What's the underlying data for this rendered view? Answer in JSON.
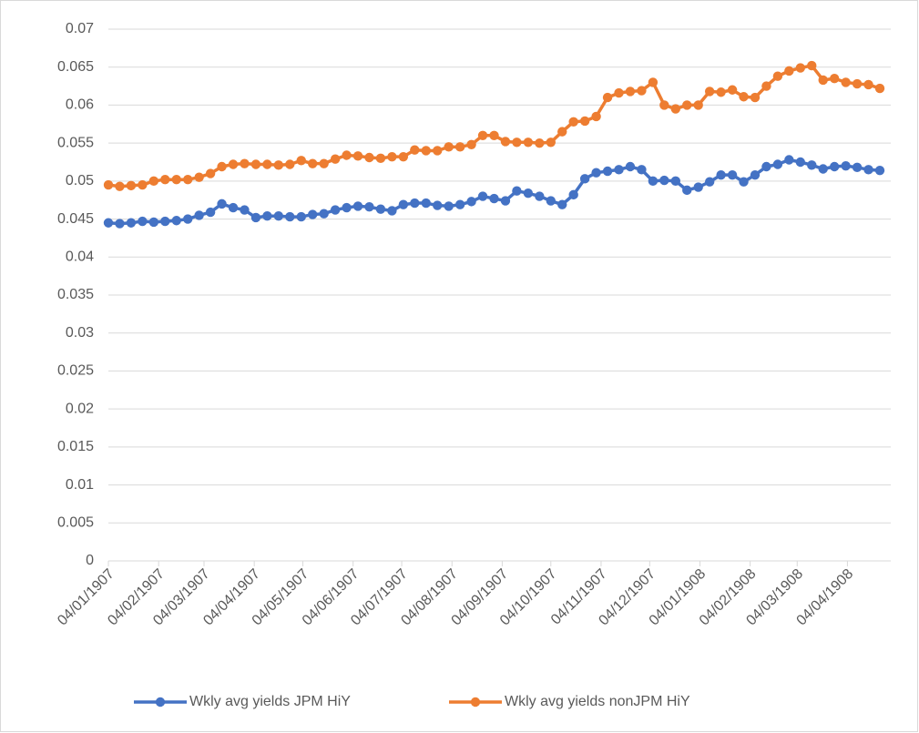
{
  "chart_data": {
    "type": "line",
    "x": [
      "1907-01-04",
      "1907-01-11",
      "1907-01-18",
      "1907-01-25",
      "1907-02-01",
      "1907-02-08",
      "1907-02-15",
      "1907-02-22",
      "1907-03-01",
      "1907-03-08",
      "1907-03-15",
      "1907-03-22",
      "1907-03-29",
      "1907-04-05",
      "1907-04-12",
      "1907-04-19",
      "1907-04-26",
      "1907-05-03",
      "1907-05-10",
      "1907-05-17",
      "1907-05-24",
      "1907-05-31",
      "1907-06-07",
      "1907-06-14",
      "1907-06-21",
      "1907-06-28",
      "1907-07-05",
      "1907-07-12",
      "1907-07-19",
      "1907-07-26",
      "1907-08-02",
      "1907-08-09",
      "1907-08-16",
      "1907-08-23",
      "1907-08-30",
      "1907-09-06",
      "1907-09-13",
      "1907-09-20",
      "1907-09-27",
      "1907-10-04",
      "1907-10-11",
      "1907-10-18",
      "1907-10-25",
      "1907-11-01",
      "1907-11-08",
      "1907-11-15",
      "1907-11-22",
      "1907-11-29",
      "1907-12-06",
      "1907-12-13",
      "1907-12-20",
      "1907-12-27",
      "1908-01-03",
      "1908-01-10",
      "1908-01-17",
      "1908-01-24",
      "1908-01-31",
      "1908-02-07",
      "1908-02-14",
      "1908-02-21",
      "1908-02-28",
      "1908-03-06",
      "1908-03-13",
      "1908-03-20",
      "1908-03-27",
      "1908-04-03",
      "1908-04-10",
      "1908-04-17",
      "1908-04-24"
    ],
    "series": [
      {
        "name": "Wkly avg yields JPM HiY",
        "color": "#4472c4",
        "values": [
          0.0445,
          0.0444,
          0.0445,
          0.0447,
          0.0446,
          0.0447,
          0.0448,
          0.045,
          0.0455,
          0.0459,
          0.047,
          0.0465,
          0.0462,
          0.0452,
          0.0454,
          0.0454,
          0.0453,
          0.0453,
          0.0456,
          0.0457,
          0.0462,
          0.0465,
          0.0467,
          0.0466,
          0.0463,
          0.0461,
          0.0469,
          0.0471,
          0.0471,
          0.0468,
          0.0467,
          0.0469,
          0.0473,
          0.048,
          0.0477,
          0.0474,
          0.0487,
          0.0484,
          0.048,
          0.0474,
          0.0469,
          0.0482,
          0.0503,
          0.0511,
          0.0513,
          0.0515,
          0.0519,
          0.0515,
          0.05,
          0.0501,
          0.05,
          0.0488,
          0.0492,
          0.0499,
          0.0508,
          0.0508,
          0.0499,
          0.0508,
          0.0519,
          0.0522,
          0.0528,
          0.0525,
          0.0521,
          0.0516,
          0.0519,
          0.052,
          0.0518,
          0.0515,
          0.0514
        ]
      },
      {
        "name": "Wkly avg yields nonJPM HiY",
        "color": "#ed7d31",
        "values": [
          0.0495,
          0.0493,
          0.0494,
          0.0495,
          0.05,
          0.0502,
          0.0502,
          0.0502,
          0.0505,
          0.051,
          0.0519,
          0.0522,
          0.0523,
          0.0522,
          0.0522,
          0.0521,
          0.0522,
          0.0527,
          0.0523,
          0.0523,
          0.0529,
          0.0534,
          0.0533,
          0.0531,
          0.053,
          0.0532,
          0.0532,
          0.0541,
          0.054,
          0.054,
          0.0545,
          0.0545,
          0.0548,
          0.056,
          0.056,
          0.0552,
          0.0551,
          0.0551,
          0.055,
          0.0551,
          0.0565,
          0.0578,
          0.0579,
          0.0585,
          0.061,
          0.0616,
          0.0618,
          0.0619,
          0.063,
          0.06,
          0.0595,
          0.06,
          0.06,
          0.0618,
          0.0617,
          0.062,
          0.0611,
          0.061,
          0.0625,
          0.0638,
          0.0645,
          0.0649,
          0.0652,
          0.0633,
          0.0635,
          0.063,
          0.0628,
          0.0627,
          0.0622
        ]
      }
    ],
    "xlim": [
      "1907-01-04",
      "1908-04-24"
    ],
    "xticks": [
      {
        "value": "1907-01-04",
        "label": "04/01/1907"
      },
      {
        "value": "1907-02-04",
        "label": "04/02/1907"
      },
      {
        "value": "1907-03-04",
        "label": "04/03/1907"
      },
      {
        "value": "1907-04-04",
        "label": "04/04/1907"
      },
      {
        "value": "1907-05-04",
        "label": "04/05/1907"
      },
      {
        "value": "1907-06-04",
        "label": "04/06/1907"
      },
      {
        "value": "1907-07-04",
        "label": "04/07/1907"
      },
      {
        "value": "1907-08-04",
        "label": "04/08/1907"
      },
      {
        "value": "1907-09-04",
        "label": "04/09/1907"
      },
      {
        "value": "1907-10-04",
        "label": "04/10/1907"
      },
      {
        "value": "1907-11-04",
        "label": "04/11/1907"
      },
      {
        "value": "1907-12-04",
        "label": "04/12/1907"
      },
      {
        "value": "1908-01-04",
        "label": "04/01/1908"
      },
      {
        "value": "1908-02-04",
        "label": "04/02/1908"
      },
      {
        "value": "1908-03-04",
        "label": "04/03/1908"
      },
      {
        "value": "1908-04-04",
        "label": "04/04/1908"
      }
    ],
    "ylim": [
      0,
      0.07
    ],
    "yticks": [
      0,
      0.005,
      0.01,
      0.015,
      0.02,
      0.025,
      0.03,
      0.035,
      0.04,
      0.045,
      0.05,
      0.055,
      0.06,
      0.065,
      0.07
    ],
    "grid": true,
    "legend": "bottom"
  }
}
